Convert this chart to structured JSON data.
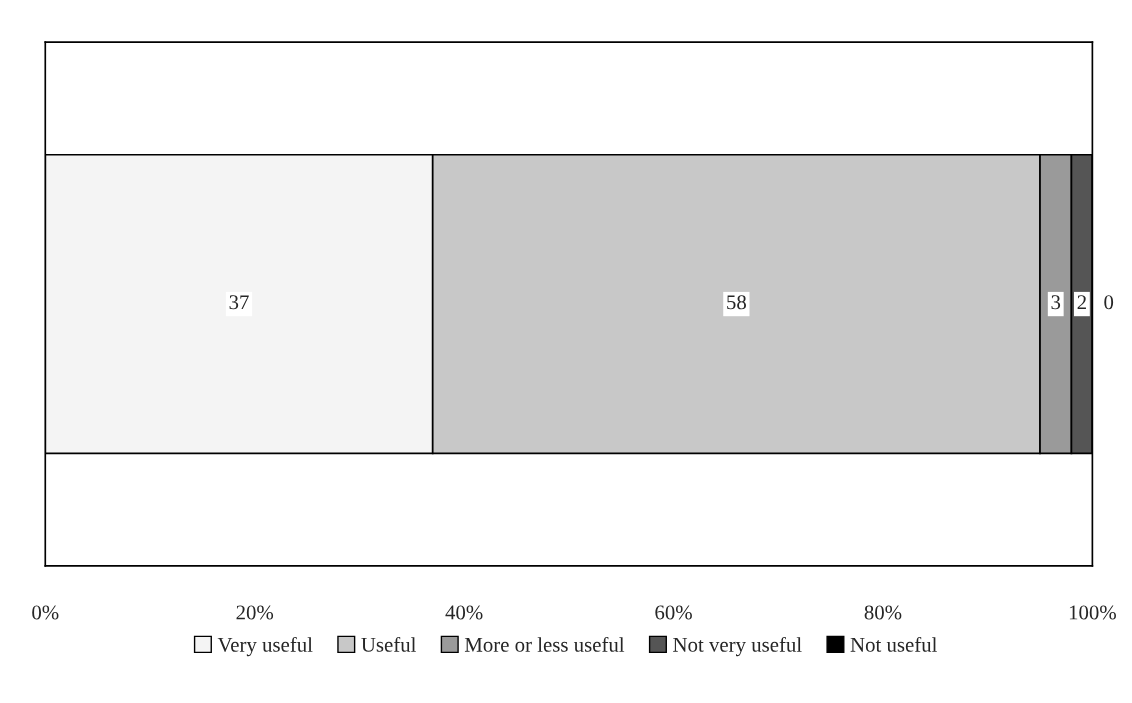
{
  "chart_data": {
    "type": "bar",
    "orientation": "horizontal",
    "stacked": true,
    "categories": [
      null
    ],
    "series": [
      {
        "name": "Very useful",
        "color": "#f4f4f4",
        "values": [
          37
        ]
      },
      {
        "name": "Useful",
        "color": "#c8c8c8",
        "values": [
          58
        ]
      },
      {
        "name": "More or less useful",
        "color": "#9a9a9a",
        "values": [
          3
        ]
      },
      {
        "name": "Not very useful",
        "color": "#555555",
        "values": [
          2
        ]
      },
      {
        "name": "Not useful",
        "color": "#000000",
        "values": [
          0
        ]
      }
    ],
    "xlim": [
      0,
      100
    ],
    "xticks": [
      {
        "value": 0,
        "label": "0%"
      },
      {
        "value": 20,
        "label": "20%"
      },
      {
        "value": 40,
        "label": "40%"
      },
      {
        "value": 60,
        "label": "60%"
      },
      {
        "value": 80,
        "label": "80%"
      },
      {
        "value": 100,
        "label": "100%"
      }
    ],
    "tick_labels": "x",
    "data_labels": true,
    "legend": "bottom",
    "grid": false
  }
}
